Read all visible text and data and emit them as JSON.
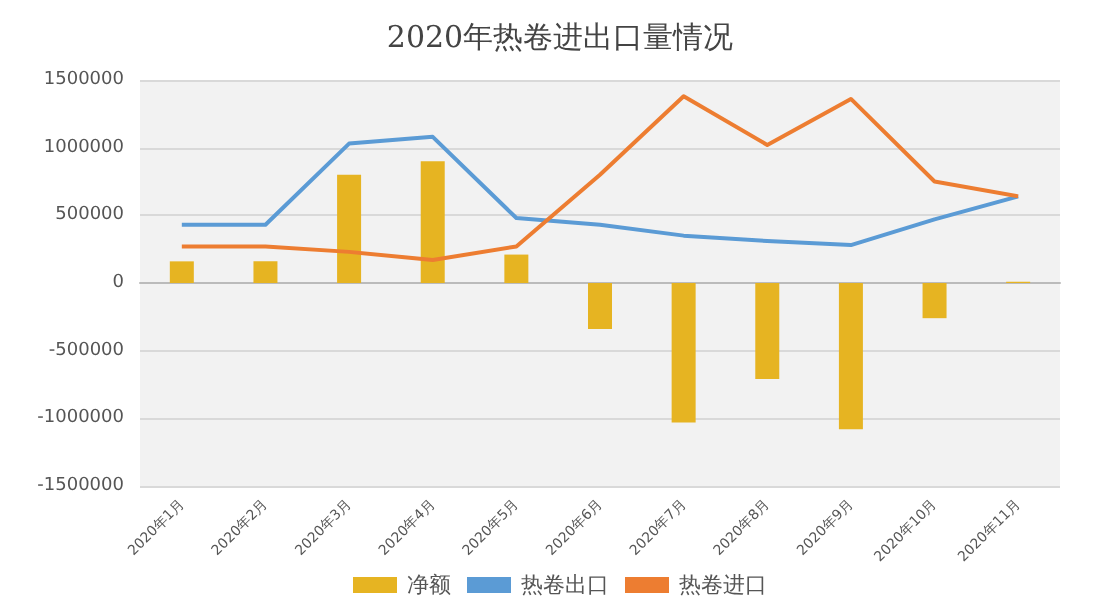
{
  "chart_data": {
    "type": "bar",
    "title": "2020年热卷进出口量情况",
    "categories": [
      "2020年1月",
      "2020年2月",
      "2020年3月",
      "2020年4月",
      "2020年5月",
      "2020年6月",
      "2020年7月",
      "2020年8月",
      "2020年9月",
      "2020年10月",
      "2020年11月"
    ],
    "series": [
      {
        "name": "净额",
        "color": "#e6b422",
        "values": [
          160000,
          160000,
          800000,
          900000,
          210000,
          -340000,
          -1030000,
          -710000,
          -1080000,
          -260000,
          10000
        ]
      },
      {
        "name": "热卷出口",
        "type": "line",
        "color": "#5b9bd5",
        "values": [
          430000,
          430000,
          1030000,
          1080000,
          480000,
          430000,
          350000,
          310000,
          280000,
          470000,
          640000
        ]
      },
      {
        "name": "热卷进口",
        "type": "line",
        "color": "#ed7d31",
        "values": [
          270000,
          270000,
          230000,
          170000,
          270000,
          800000,
          1380000,
          1020000,
          1360000,
          750000,
          640000
        ]
      }
    ],
    "ylim": [
      -1500000,
      1500000
    ],
    "yticks": [
      -1500000,
      -1000000,
      -500000,
      0,
      500000,
      1000000,
      1500000
    ],
    "grid": "y",
    "legend": "bottom",
    "marker": "none"
  }
}
